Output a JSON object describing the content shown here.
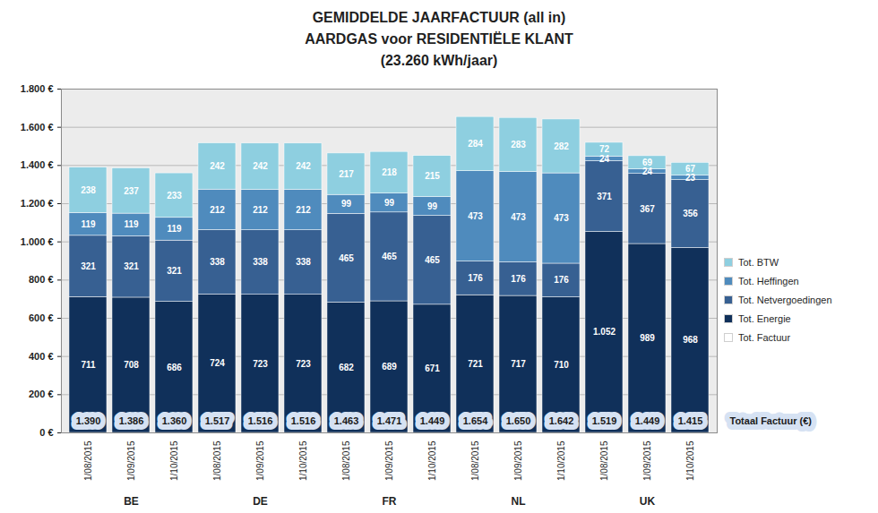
{
  "chart_data": {
    "type": "bar",
    "title": "GEMIDDELDE JAARFACTUUR (all in)",
    "subtitle": [
      "AARDGAS voor RESIDENTIËLE KLANT",
      "(23.260 kWh/jaar)"
    ],
    "annotations": [
      "Totaal Factuur (€)"
    ],
    "categories": [
      "1/08/2015",
      "1/09/2015",
      "1/10/2015",
      "1/08/2015",
      "1/09/2015",
      "1/10/2015",
      "1/08/2015",
      "1/09/2015",
      "1/10/2015",
      "1/08/2015",
      "1/09/2015",
      "1/10/2015",
      "1/08/2015",
      "1/09/2015",
      "1/10/2015"
    ],
    "groups": [
      "BE",
      "BE",
      "BE",
      "DE",
      "DE",
      "DE",
      "FR",
      "FR",
      "FR",
      "NL",
      "NL",
      "NL",
      "UK",
      "UK",
      "UK"
    ],
    "series": [
      {
        "name": "Tot. Energie",
        "color": "#10305a",
        "values": [
          711,
          708,
          686,
          724,
          723,
          723,
          682,
          689,
          671,
          721,
          717,
          710,
          1052,
          989,
          968
        ],
        "value_labels": [
          "711",
          "708",
          "686",
          "724",
          "723",
          "723",
          "682",
          "689",
          "671",
          "721",
          "717",
          "710",
          "1.052",
          "989",
          "968"
        ]
      },
      {
        "name": "Tot. Netvergoedingen",
        "color": "#376092",
        "values": [
          321,
          321,
          321,
          338,
          338,
          338,
          465,
          465,
          465,
          176,
          176,
          176,
          371,
          367,
          356
        ]
      },
      {
        "name": "Tot. Heffingen",
        "color": "#4f8bbd",
        "values": [
          119,
          119,
          119,
          212,
          212,
          212,
          99,
          99,
          99,
          473,
          473,
          473,
          24,
          24,
          23
        ]
      },
      {
        "name": "Tot. BTW",
        "color": "#8ecfe0",
        "values": [
          238,
          237,
          233,
          242,
          242,
          242,
          217,
          218,
          215,
          284,
          283,
          282,
          72,
          69,
          67
        ]
      },
      {
        "name": "Tot. Factuur",
        "type": "text",
        "color": "#ffffff",
        "values": [
          1390,
          1386,
          1360,
          1517,
          1516,
          1516,
          1463,
          1471,
          1449,
          1654,
          1650,
          1642,
          1519,
          1449,
          1415
        ],
        "value_labels": [
          "1.390",
          "1.386",
          "1.360",
          "1.517",
          "1.516",
          "1.516",
          "1.463",
          "1.471",
          "1.449",
          "1.654",
          "1.650",
          "1.642",
          "1.519",
          "1.449",
          "1.415"
        ]
      }
    ],
    "ylim": [
      0,
      1800
    ],
    "yticks": [
      {
        "value": 0,
        "label": "0 €"
      },
      {
        "value": 200,
        "label": "200 €"
      },
      {
        "value": 400,
        "label": "400 €"
      },
      {
        "value": 600,
        "label": "600 €"
      },
      {
        "value": 800,
        "label": "800 €"
      },
      {
        "value": 1000,
        "label": "1.000 €"
      },
      {
        "value": 1200,
        "label": "1.200 €"
      },
      {
        "value": 1400,
        "label": "1.400 €"
      },
      {
        "value": 1600,
        "label": "1.600 €"
      },
      {
        "value": 1800,
        "label": "1.800 €"
      }
    ],
    "stacked": true,
    "data_labels": true,
    "grid": true,
    "legend": "right"
  }
}
